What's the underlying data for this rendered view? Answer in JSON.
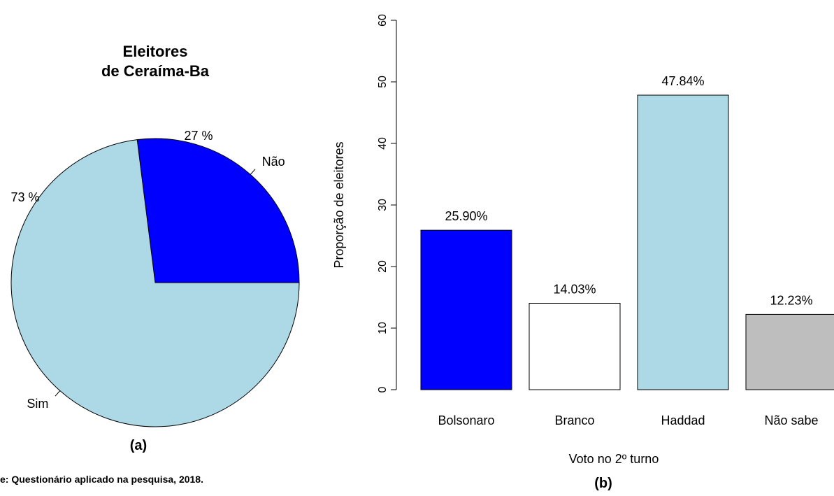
{
  "figure": {
    "source_note": "e: Questionário aplicado na pesquisa, 2018."
  },
  "chart_data": [
    {
      "type": "pie",
      "title_lines": [
        "Eleitores",
        "de Ceraíma-Ba"
      ],
      "panel_label": "(a)",
      "slices": [
        {
          "label": "Não",
          "value": 27,
          "pct_label": "27 %",
          "color": "#0000ff"
        },
        {
          "label": "Sim",
          "value": 73,
          "pct_label": "73 %",
          "color": "#add8e6"
        }
      ]
    },
    {
      "type": "bar",
      "panel_label": "(b)",
      "xlabel": "Voto no 2º turno",
      "ylabel": "Proporção de eleitores",
      "ylim": [
        0,
        60
      ],
      "yticks": [
        0,
        10,
        20,
        30,
        40,
        50,
        60
      ],
      "grid": false,
      "bars": [
        {
          "category": "Bolsonaro",
          "value": 25.9,
          "value_label": "25.90%",
          "color": "#0000ff"
        },
        {
          "category": "Branco",
          "value": 14.03,
          "value_label": "14.03%",
          "color": "#ffffff"
        },
        {
          "category": "Haddad",
          "value": 47.84,
          "value_label": "47.84%",
          "color": "#add8e6"
        },
        {
          "category": "Não sabe",
          "value": 12.23,
          "value_label": "12.23%",
          "color": "#bebebe"
        }
      ]
    }
  ]
}
